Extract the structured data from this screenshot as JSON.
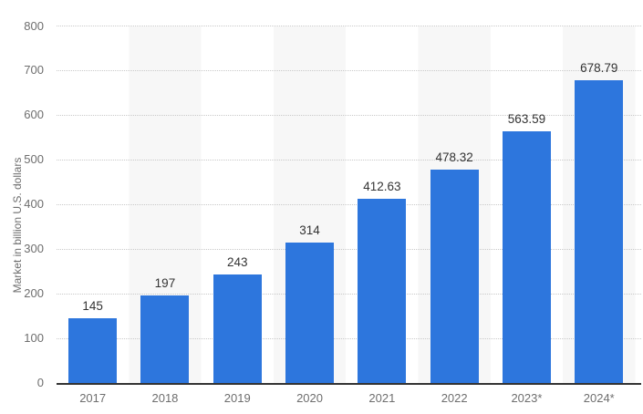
{
  "chart_data": {
    "type": "bar",
    "categories": [
      "2017",
      "2018",
      "2019",
      "2020",
      "2021",
      "2022",
      "2023*",
      "2024*"
    ],
    "values": [
      145,
      197,
      243,
      314,
      412.63,
      478.32,
      563.59,
      678.79
    ],
    "value_labels": [
      "145",
      "197",
      "243",
      "314",
      "412.63",
      "478.32",
      "563.59",
      "678.79"
    ],
    "title": "",
    "xlabel": "",
    "ylabel": "Market in billion U.S. dollars",
    "ylim": [
      0,
      800
    ],
    "yticks": [
      0,
      100,
      200,
      300,
      400,
      500,
      600,
      700,
      800
    ],
    "grid": "horizontal-dotted",
    "legend_position": "none",
    "bar_color": "#2d76dd",
    "value_label_color": "#333333",
    "axis_text_color": "#6e6e6e",
    "gridline_color": "#c9c9c9",
    "stripe_color": "#f7f7f7",
    "axis_line_color": "#333333"
  }
}
